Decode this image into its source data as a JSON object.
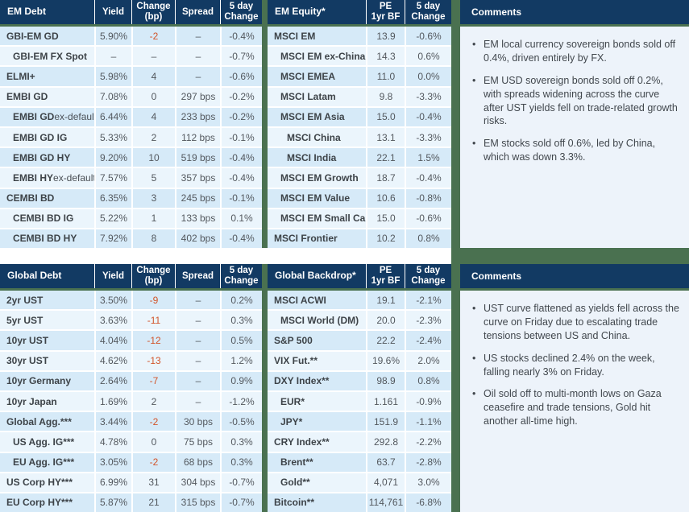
{
  "colors": {
    "header_navy": "#123a63",
    "accent_green": "#4a7150",
    "row_dark": "#d6eaf8",
    "row_light": "#ebf5fc",
    "comments_bg": "#edf3fa",
    "negative_change_orange": "#d2552b",
    "header_text": "#ffffff",
    "body_text": "#41474d"
  },
  "top": {
    "em_debt": {
      "title": "EM Debt",
      "columns": [
        "Yield",
        "Change\n(bp)",
        "Spread",
        "5 day\nChange"
      ],
      "rows": [
        {
          "label": "GBI-EM GD",
          "suffix": "",
          "indent": 0,
          "cells": [
            "5.90%",
            "-2",
            "–",
            "-0.4%"
          ]
        },
        {
          "label": "GBI-EM FX Spot",
          "suffix": "",
          "indent": 1,
          "cells": [
            "–",
            "–",
            "–",
            "-0.7%"
          ]
        },
        {
          "label": "ELMI+",
          "suffix": "",
          "indent": 0,
          "cells": [
            "5.98%",
            "4",
            "–",
            "-0.6%"
          ]
        },
        {
          "label": "EMBI GD",
          "suffix": "",
          "indent": 0,
          "cells": [
            "7.08%",
            "0",
            "297 bps",
            "-0.2%"
          ]
        },
        {
          "label": "EMBI GD",
          "suffix": " ex-default",
          "indent": 1,
          "cells": [
            "6.44%",
            "4",
            "233 bps",
            "-0.2%"
          ]
        },
        {
          "label": "EMBI GD IG",
          "suffix": "",
          "indent": 1,
          "cells": [
            "5.33%",
            "2",
            "112 bps",
            "-0.1%"
          ]
        },
        {
          "label": "EMBI GD HY",
          "suffix": "",
          "indent": 1,
          "cells": [
            "9.20%",
            "10",
            "519 bps",
            "-0.4%"
          ]
        },
        {
          "label": "EMBI HY",
          "suffix": " ex-default",
          "indent": 1,
          "cells": [
            "7.57%",
            "5",
            "357 bps",
            "-0.4%"
          ]
        },
        {
          "label": "CEMBI BD",
          "suffix": "",
          "indent": 0,
          "cells": [
            "6.35%",
            "3",
            "245 bps",
            "-0.1%"
          ]
        },
        {
          "label": "CEMBI BD IG",
          "suffix": "",
          "indent": 1,
          "cells": [
            "5.22%",
            "1",
            "133 bps",
            "0.1%"
          ]
        },
        {
          "label": "CEMBI BD HY",
          "suffix": "",
          "indent": 1,
          "cells": [
            "7.92%",
            "8",
            "402 bps",
            "-0.4%"
          ]
        }
      ]
    },
    "em_equity": {
      "title": "EM Equity*",
      "columns": [
        "PE\n1yr BF",
        "5 day\nChange"
      ],
      "rows": [
        {
          "label": "MSCI EM",
          "suffix": "",
          "indent": 0,
          "cells": [
            "13.9",
            "-0.6%"
          ]
        },
        {
          "label": "MSCI EM ex-China",
          "suffix": "",
          "indent": 1,
          "cells": [
            "14.3",
            "0.6%"
          ]
        },
        {
          "label": "MSCI EMEA",
          "suffix": "",
          "indent": 1,
          "cells": [
            "11.0",
            "0.0%"
          ]
        },
        {
          "label": "MSCI Latam",
          "suffix": "",
          "indent": 1,
          "cells": [
            "9.8",
            "-3.3%"
          ]
        },
        {
          "label": "MSCI EM Asia",
          "suffix": "",
          "indent": 1,
          "cells": [
            "15.0",
            "-0.4%"
          ]
        },
        {
          "label": "MSCI China",
          "suffix": "",
          "indent": 2,
          "cells": [
            "13.1",
            "-3.3%"
          ]
        },
        {
          "label": "MSCI India",
          "suffix": "",
          "indent": 2,
          "cells": [
            "22.1",
            "1.5%"
          ]
        },
        {
          "label": "MSCI EM Growth",
          "suffix": "",
          "indent": 1,
          "cells": [
            "18.7",
            "-0.4%"
          ]
        },
        {
          "label": "MSCI EM Value",
          "suffix": "",
          "indent": 1,
          "cells": [
            "10.6",
            "-0.8%"
          ]
        },
        {
          "label": "MSCI EM Small Cap",
          "suffix": "",
          "indent": 1,
          "cells": [
            "15.0",
            "-0.6%"
          ]
        },
        {
          "label": "MSCI Frontier",
          "suffix": "",
          "indent": 0,
          "cells": [
            "10.2",
            "0.8%"
          ]
        }
      ]
    },
    "comments": {
      "title": "Comments",
      "bullets": [
        "EM local currency sovereign bonds sold off 0.4%, driven entirely by FX.",
        "EM USD sovereign bonds sold off 0.2%, with spreads widening across the curve after UST yields fell on trade-related growth risks.",
        "EM stocks sold off 0.6%, led by China, which was down 3.3%."
      ]
    }
  },
  "bottom": {
    "global_debt": {
      "title": "Global Debt",
      "columns": [
        "Yield",
        "Change\n(bp)",
        "Spread",
        "5 day\nChange"
      ],
      "rows": [
        {
          "label": "2yr UST",
          "suffix": "",
          "indent": 0,
          "cells": [
            "3.50%",
            "-9",
            "–",
            "0.2%"
          ]
        },
        {
          "label": "5yr UST",
          "suffix": "",
          "indent": 0,
          "cells": [
            "3.63%",
            "-11",
            "–",
            "0.3%"
          ]
        },
        {
          "label": "10yr UST",
          "suffix": "",
          "indent": 0,
          "cells": [
            "4.04%",
            "-12",
            "–",
            "0.5%"
          ]
        },
        {
          "label": "30yr UST",
          "suffix": "",
          "indent": 0,
          "cells": [
            "4.62%",
            "-13",
            "–",
            "1.2%"
          ]
        },
        {
          "label": "10yr Germany",
          "suffix": "",
          "indent": 0,
          "cells": [
            "2.64%",
            "-7",
            "–",
            "0.9%"
          ]
        },
        {
          "label": "10yr Japan",
          "suffix": "",
          "indent": 0,
          "cells": [
            "1.69%",
            "2",
            "–",
            "-1.2%"
          ]
        },
        {
          "label": "Global Agg.***",
          "suffix": "",
          "indent": 0,
          "cells": [
            "3.44%",
            "-2",
            "30 bps",
            "-0.5%"
          ]
        },
        {
          "label": "US Agg. IG***",
          "suffix": "",
          "indent": 1,
          "cells": [
            "4.78%",
            "0",
            "75 bps",
            "0.3%"
          ]
        },
        {
          "label": "EU Agg. IG***",
          "suffix": "",
          "indent": 1,
          "cells": [
            "3.05%",
            "-2",
            "68 bps",
            "0.3%"
          ]
        },
        {
          "label": "US Corp HY***",
          "suffix": "",
          "indent": 0,
          "cells": [
            "6.99%",
            "31",
            "304 bps",
            "-0.7%"
          ]
        },
        {
          "label": "EU Corp HY***",
          "suffix": "",
          "indent": 0,
          "cells": [
            "5.87%",
            "21",
            "315 bps",
            "-0.7%"
          ]
        }
      ]
    },
    "global_backdrop": {
      "title": "Global Backdrop*",
      "columns": [
        "PE\n1yr BF",
        "5 day\nChange"
      ],
      "rows": [
        {
          "label": "MSCI ACWI",
          "suffix": "",
          "indent": 0,
          "cells": [
            "19.1",
            "-2.1%"
          ]
        },
        {
          "label": "MSCI World (DM)",
          "suffix": "",
          "indent": 1,
          "cells": [
            "20.0",
            "-2.3%"
          ]
        },
        {
          "label": "S&P 500",
          "suffix": "",
          "indent": 0,
          "cells": [
            "22.2",
            "-2.4%"
          ]
        },
        {
          "label": "VIX Fut.**",
          "suffix": "",
          "indent": 0,
          "cells": [
            "19.6%",
            "2.0%"
          ]
        },
        {
          "label": "DXY Index**",
          "suffix": "",
          "indent": 0,
          "cells": [
            "98.9",
            "0.8%"
          ]
        },
        {
          "label": "EUR*",
          "suffix": "",
          "indent": 1,
          "cells": [
            "1.161",
            "-0.9%"
          ]
        },
        {
          "label": "JPY*",
          "suffix": "",
          "indent": 1,
          "cells": [
            "151.9",
            "-1.1%"
          ]
        },
        {
          "label": "CRY Index**",
          "suffix": "",
          "indent": 0,
          "cells": [
            "292.8",
            "-2.2%"
          ]
        },
        {
          "label": "Brent**",
          "suffix": "",
          "indent": 1,
          "cells": [
            "63.7",
            "-2.8%"
          ]
        },
        {
          "label": "Gold**",
          "suffix": "",
          "indent": 1,
          "cells": [
            "4,071",
            "3.0%"
          ]
        },
        {
          "label": "Bitcoin**",
          "suffix": "",
          "indent": 0,
          "cells": [
            "114,761",
            "-6.8%"
          ]
        }
      ]
    },
    "comments": {
      "title": "Comments",
      "bullets": [
        "UST curve flattened as yields fell across the curve on Friday due to escalating trade tensions between US and China.",
        "US stocks declined 2.4% on the week, falling nearly 3% on Friday.",
        "Oil sold off to multi-month lows on Gaza ceasefire and trade tensions, Gold hit another all-time high."
      ]
    }
  }
}
